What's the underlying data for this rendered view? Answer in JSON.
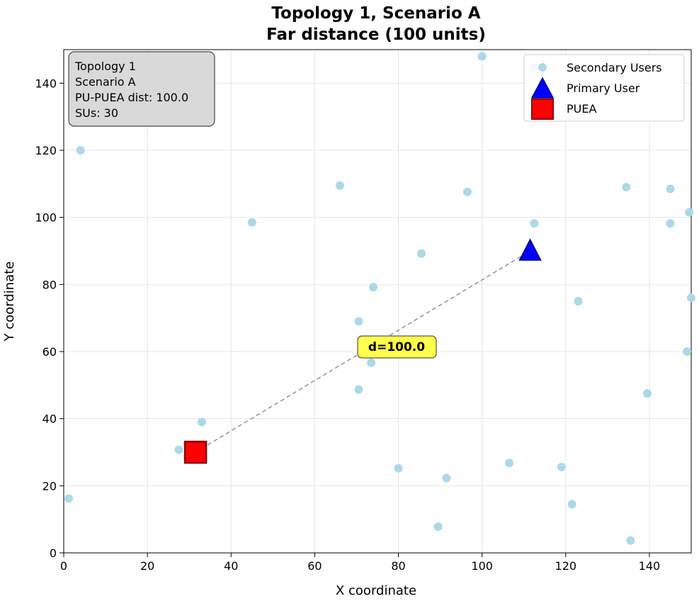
{
  "chart_data": {
    "type": "scatter",
    "title": "Topology 1, Scenario A",
    "subtitle": "Far distance (100 units)",
    "xlabel": "X coordinate",
    "ylabel": "Y coordinate",
    "xlim": [
      0,
      150
    ],
    "ylim": [
      0,
      150
    ],
    "xticks": [
      0,
      20,
      40,
      60,
      80,
      100,
      120,
      140
    ],
    "yticks": [
      0,
      20,
      40,
      60,
      80,
      100,
      120,
      140
    ],
    "grid": true,
    "legend_position": "top-right",
    "series": [
      {
        "name": "Secondary Users",
        "marker": "circle",
        "color": "#add8e6",
        "points": [
          [
            4,
            120
          ],
          [
            1.2,
            16.2
          ],
          [
            27.5,
            30.7
          ],
          [
            33,
            39
          ],
          [
            45,
            98.5
          ],
          [
            66,
            109.5
          ],
          [
            70.5,
            69
          ],
          [
            70.5,
            48.7
          ],
          [
            73.5,
            56.7
          ],
          [
            74,
            79.2
          ],
          [
            80,
            25.2
          ],
          [
            85.5,
            89.2
          ],
          [
            89.5,
            7.8
          ],
          [
            91.5,
            22.3
          ],
          [
            96.5,
            107.6
          ],
          [
            106.5,
            26.8
          ],
          [
            112.5,
            98.2
          ],
          [
            112.5,
            144.7
          ],
          [
            119,
            25.6
          ],
          [
            121.5,
            14.5
          ],
          [
            123,
            75
          ],
          [
            134.5,
            109
          ],
          [
            135.5,
            3.7
          ],
          [
            139.5,
            47.5
          ],
          [
            145,
            108.5
          ],
          [
            145,
            98.2
          ],
          [
            149.5,
            101.5
          ],
          [
            150,
            76
          ],
          [
            149,
            60
          ],
          [
            100,
            148
          ]
        ]
      },
      {
        "name": "Primary User",
        "marker": "triangle",
        "color": "#0000ff",
        "points": [
          [
            111.5,
            90
          ]
        ]
      },
      {
        "name": "PUEA",
        "marker": "square",
        "color": "#ff0000",
        "points": [
          [
            31.5,
            30
          ]
        ]
      }
    ],
    "connector": {
      "from": [
        31.5,
        30
      ],
      "to": [
        111.5,
        90
      ],
      "style": "dashed",
      "color": "#999999"
    },
    "annotations": {
      "distance_label": "d=100.0",
      "distance_label_at": [
        80,
        61
      ],
      "info_box": [
        "Topology 1",
        "Scenario A",
        "PU-PUEA dist: 100.0",
        "SUs: 30"
      ]
    }
  }
}
